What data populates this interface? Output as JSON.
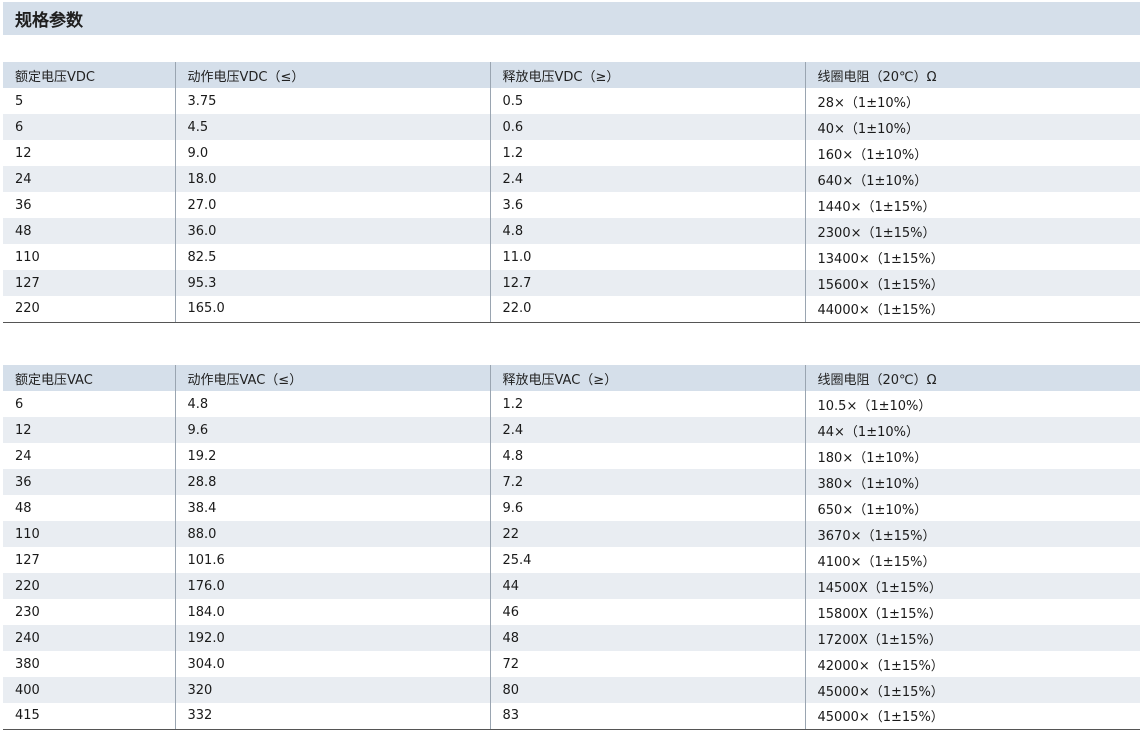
{
  "section": {
    "title": "规格参数"
  },
  "dc_table": {
    "headers": [
      "额定电压VDC",
      "动作电压VDC（≤）",
      "释放电压VDC（≥）",
      "线圈电阻（20℃）Ω"
    ],
    "rows": [
      [
        "5",
        "3.75",
        "0.5",
        "28×（1±10%）"
      ],
      [
        "6",
        "4.5",
        "0.6",
        "40×（1±10%）"
      ],
      [
        "12",
        "9.0",
        "1.2",
        "160×（1±10%）"
      ],
      [
        "24",
        "18.0",
        "2.4",
        "640×（1±10%）"
      ],
      [
        "36",
        "27.0",
        "3.6",
        "1440×（1±15%）"
      ],
      [
        "48",
        "36.0",
        "4.8",
        "2300×（1±15%）"
      ],
      [
        "110",
        "82.5",
        "11.0",
        "13400×（1±15%）"
      ],
      [
        "127",
        "95.3",
        "12.7",
        "15600×（1±15%）"
      ],
      [
        "220",
        "165.0",
        "22.0",
        "44000×（1±15%）"
      ]
    ]
  },
  "ac_table": {
    "headers": [
      "额定电压VAC",
      "动作电压VAC（≤）",
      "释放电压VAC（≥）",
      "线圈电阻（20℃）Ω"
    ],
    "rows": [
      [
        "6",
        "4.8",
        "1.2",
        "10.5×（1±10%）"
      ],
      [
        "12",
        "9.6",
        "2.4",
        "44×（1±10%）"
      ],
      [
        "24",
        "19.2",
        "4.8",
        "180×（1±10%）"
      ],
      [
        "36",
        "28.8",
        "7.2",
        "380×（1±10%）"
      ],
      [
        "48",
        "38.4",
        "9.6",
        "650×（1±10%）"
      ],
      [
        "110",
        "88.0",
        "22",
        "3670×（1±15%）"
      ],
      [
        "127",
        "101.6",
        "25.4",
        "4100×（1±15%）"
      ],
      [
        "220",
        "176.0",
        "44",
        "14500X（1±15%）"
      ],
      [
        "230",
        "184.0",
        "46",
        "15800X（1±15%）"
      ],
      [
        "240",
        "192.0",
        "48",
        "17200X（1±15%）"
      ],
      [
        "380",
        "304.0",
        "72",
        "42000×（1±15%）"
      ],
      [
        "400",
        "320",
        "80",
        "45000×（1±15%）"
      ],
      [
        "415",
        "332",
        "83",
        "45000×（1±15%）"
      ]
    ]
  }
}
